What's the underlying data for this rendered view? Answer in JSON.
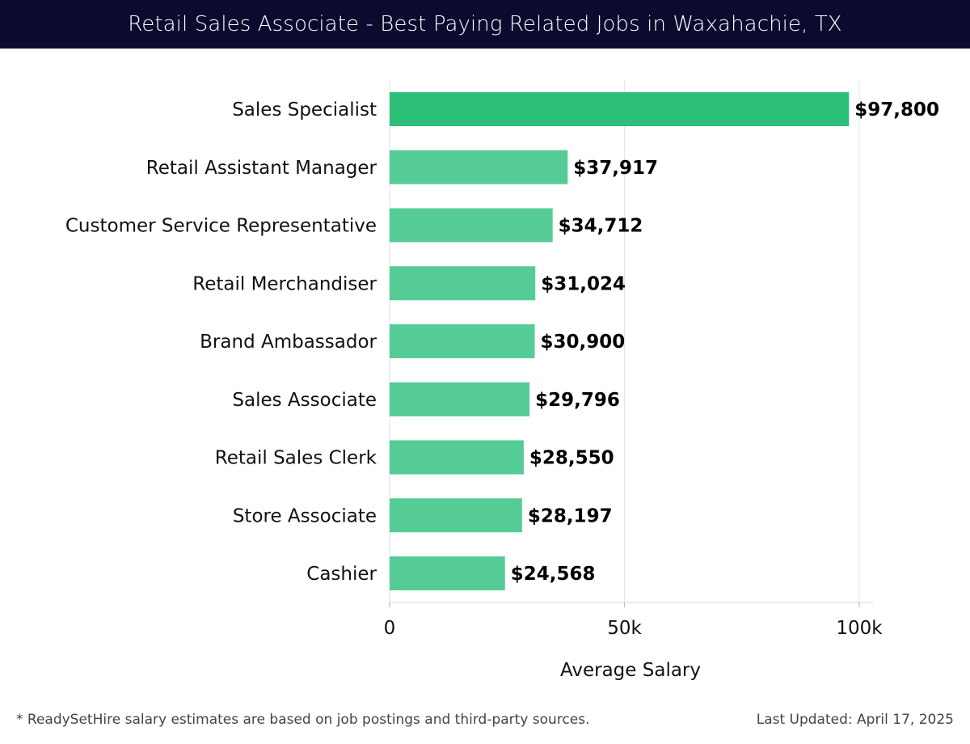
{
  "header": {
    "title": "Retail Sales Associate - Best Paying Related Jobs in Waxahachie, TX"
  },
  "colors": {
    "header_bg": "#0b0b2f",
    "top_bar": "#2bbf77",
    "bar": "#55cc95",
    "grid": "#e6e6e6"
  },
  "chart_data": {
    "type": "bar",
    "orientation": "horizontal",
    "categories": [
      "Sales Specialist",
      "Retail Assistant Manager",
      "Customer Service Representative",
      "Retail Merchandiser",
      "Brand Ambassador",
      "Sales Associate",
      "Retail Sales Clerk",
      "Store Associate",
      "Cashier"
    ],
    "values": [
      97800,
      37917,
      34712,
      31024,
      30900,
      29796,
      28550,
      28197,
      24568
    ],
    "value_labels": [
      "$97,800",
      "$37,917",
      "$34,712",
      "$31,024",
      "$30,900",
      "$29,796",
      "$28,550",
      "$28,197",
      "$24,568"
    ],
    "xlabel": "Average Salary",
    "xlim": [
      0,
      100000
    ],
    "x_ticks": [
      0,
      50000,
      100000
    ],
    "x_tick_labels": [
      "0",
      "50k",
      "100k"
    ],
    "grid": true
  },
  "footer": {
    "note": "* ReadySetHire salary estimates are based on job postings and third-party sources.",
    "updated": "Last Updated: April 17, 2025"
  }
}
